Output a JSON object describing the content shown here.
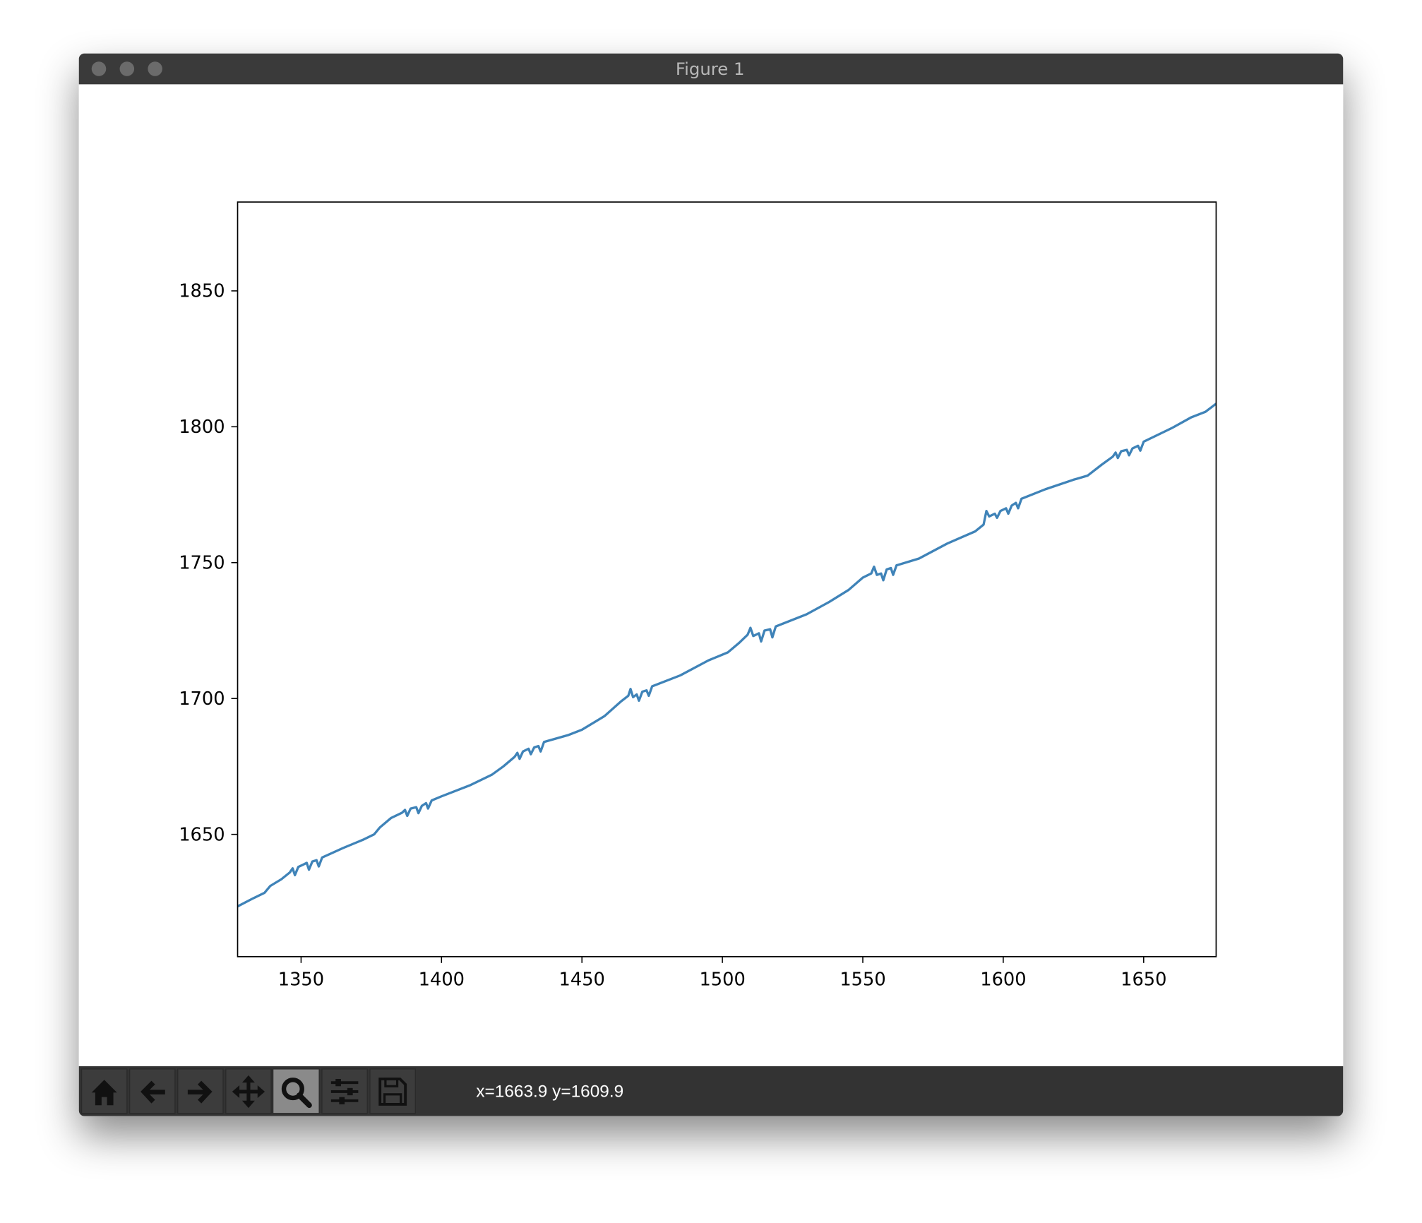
{
  "window": {
    "title": "Figure 1",
    "status": "x=1663.9 y=1609.9"
  },
  "chart_data": {
    "type": "line",
    "color": "#3f83b8",
    "x": [
      1327.4,
      1333,
      1337,
      1339,
      1343,
      1346,
      1347,
      1347.8,
      1349,
      1351,
      1352,
      1352.8,
      1354,
      1355.5,
      1356.3,
      1357.5,
      1365,
      1372,
      1376,
      1378,
      1382,
      1386,
      1387,
      1387.8,
      1389,
      1391,
      1391.8,
      1393,
      1394.5,
      1395.2,
      1396.5,
      1400,
      1410,
      1418,
      1422,
      1426,
      1427,
      1427.8,
      1429,
      1431,
      1431.8,
      1433,
      1434.5,
      1435.3,
      1436.5,
      1445,
      1450,
      1458,
      1464,
      1466.5,
      1467.3,
      1468.2,
      1469.5,
      1470.3,
      1471.5,
      1473,
      1473.8,
      1475,
      1485,
      1495,
      1502,
      1506,
      1509,
      1510,
      1511,
      1513,
      1513.8,
      1515,
      1517,
      1517.8,
      1519,
      1530,
      1538,
      1545,
      1550,
      1553,
      1554,
      1555,
      1556.5,
      1557.3,
      1558.5,
      1560,
      1560.8,
      1562,
      1570,
      1580,
      1590,
      1593,
      1594,
      1595,
      1597,
      1597.8,
      1599,
      1601,
      1601.8,
      1603,
      1604.5,
      1605.3,
      1606.5,
      1615,
      1625,
      1630,
      1635,
      1639,
      1640,
      1640.8,
      1642,
      1644,
      1644.8,
      1646,
      1648,
      1648.8,
      1650,
      1660,
      1667,
      1672,
      1675.8
    ],
    "values": [
      1623.5,
      1626.5,
      1628.5,
      1631,
      1633.5,
      1636,
      1637.5,
      1635,
      1638,
      1639,
      1639.5,
      1637,
      1640,
      1640.5,
      1638.2,
      1641.5,
      1645,
      1648,
      1650,
      1652.5,
      1656,
      1658,
      1659,
      1656.8,
      1659.5,
      1660,
      1657.8,
      1660.5,
      1661.5,
      1659.5,
      1662.5,
      1664,
      1668,
      1672,
      1675,
      1678.5,
      1680,
      1677.8,
      1680.5,
      1681.5,
      1679.5,
      1682,
      1682.5,
      1680.5,
      1684,
      1686.5,
      1688.5,
      1693.5,
      1699,
      1701,
      1703.5,
      1700.5,
      1701.5,
      1699.2,
      1702.5,
      1703,
      1701,
      1704.5,
      1708.5,
      1714,
      1717,
      1720.5,
      1723.5,
      1726,
      1723,
      1724,
      1721,
      1725,
      1725.5,
      1722.5,
      1726.5,
      1731,
      1735.5,
      1740,
      1744.5,
      1746,
      1748.5,
      1745.5,
      1746,
      1743.5,
      1747.5,
      1748,
      1745.5,
      1749,
      1751.5,
      1757,
      1761.5,
      1764,
      1769,
      1767,
      1768,
      1766.5,
      1769,
      1770,
      1768,
      1771,
      1772,
      1770,
      1773.5,
      1777,
      1780.5,
      1782,
      1786,
      1789,
      1790.5,
      1788.5,
      1791,
      1791.5,
      1789.5,
      1792,
      1793,
      1791.2,
      1794.5,
      1799.5,
      1803.5,
      1805.5,
      1808.5
    ],
    "xlim": [
      1327.4,
      1675.8
    ],
    "xticks": [
      1350,
      1400,
      1450,
      1500,
      1550,
      1600,
      1650
    ],
    "ylim": [
      1605,
      1882.7
    ],
    "yticks": [
      1650,
      1700,
      1750,
      1800,
      1850
    ]
  }
}
